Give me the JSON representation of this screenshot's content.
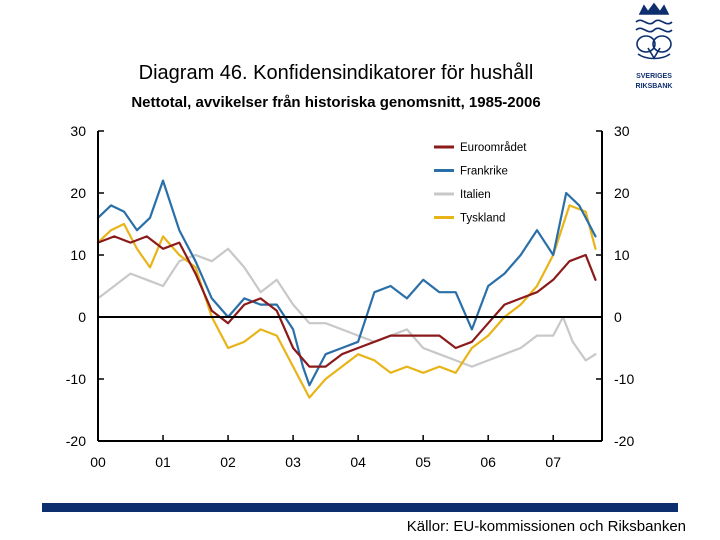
{
  "header": {
    "title": "Diagram 46. Konfidensindikatorer för hushåll",
    "subtitle": "Nettotal, avvikelser från historiska genomsnitt, 1985-2006"
  },
  "logo": {
    "line1": "SVERIGES",
    "line2": "RIKSBANK",
    "icon": "crown-emblem-icon"
  },
  "footer": {
    "source": "Källor: EU-kommissionen och Riksbanken"
  },
  "colors": {
    "euro": "#8b1a1a",
    "fr": "#2a6fa8",
    "it": "#c8c8c8",
    "de": "#e8b418",
    "axis": "#000000",
    "bar": "#0e2f6e"
  },
  "chart_data": {
    "type": "line",
    "title": "Diagram 46. Konfidensindikatorer för hushåll",
    "subtitle": "Nettotal, avvikelser från historiska genomsnitt, 1985-2006",
    "xlabel": "",
    "ylabel": "",
    "x_range": [
      2000.0,
      2007.75
    ],
    "ylim": [
      -20,
      30
    ],
    "y_ticks": [
      "30",
      "20",
      "10",
      "0",
      "-10",
      "-20"
    ],
    "y_tick_values": [
      30,
      20,
      10,
      0,
      -10,
      -20
    ],
    "x_ticks": [
      "00",
      "01",
      "02",
      "03",
      "04",
      "05",
      "06",
      "07"
    ],
    "x_tick_values": [
      2000,
      2001,
      2002,
      2003,
      2004,
      2005,
      2006,
      2007
    ],
    "legend": {
      "position": "top-right"
    },
    "series": [
      {
        "name": "Euroområdet",
        "color": "#8b1a1a",
        "x": [
          2000.0,
          2000.25,
          2000.5,
          2000.75,
          2001.0,
          2001.25,
          2001.5,
          2001.75,
          2002.0,
          2002.25,
          2002.5,
          2002.75,
          2003.0,
          2003.25,
          2003.5,
          2003.75,
          2004.0,
          2004.25,
          2004.5,
          2004.75,
          2005.0,
          2005.25,
          2005.5,
          2005.75,
          2006.0,
          2006.25,
          2006.5,
          2006.75,
          2007.0,
          2007.25,
          2007.5,
          2007.65
        ],
        "values": [
          12,
          13,
          12,
          13,
          11,
          12,
          7,
          1,
          -1,
          2,
          3,
          1,
          -5,
          -8,
          -8,
          -6,
          -5,
          -4,
          -3,
          -3,
          -3,
          -3,
          -5,
          -4,
          -1,
          2,
          3,
          4,
          6,
          9,
          10,
          6
        ]
      },
      {
        "name": "Frankrike",
        "color": "#2a6fa8",
        "x": [
          2000.0,
          2000.2,
          2000.4,
          2000.6,
          2000.8,
          2001.0,
          2001.25,
          2001.5,
          2001.75,
          2002.0,
          2002.25,
          2002.5,
          2002.75,
          2003.0,
          2003.15,
          2003.25,
          2003.5,
          2003.75,
          2004.0,
          2004.25,
          2004.5,
          2004.75,
          2005.0,
          2005.25,
          2005.5,
          2005.75,
          2006.0,
          2006.25,
          2006.5,
          2006.75,
          2007.0,
          2007.2,
          2007.4,
          2007.65
        ],
        "values": [
          16,
          18,
          17,
          14,
          16,
          22,
          14,
          9,
          3,
          0,
          3,
          2,
          2,
          -2,
          -8,
          -11,
          -6,
          -5,
          -4,
          4,
          5,
          3,
          6,
          4,
          4,
          -2,
          5,
          7,
          10,
          14,
          10,
          20,
          18,
          13
        ]
      },
      {
        "name": "Italien",
        "color": "#c8c8c8",
        "x": [
          2000.0,
          2000.25,
          2000.5,
          2000.75,
          2001.0,
          2001.25,
          2001.5,
          2001.75,
          2002.0,
          2002.25,
          2002.5,
          2002.75,
          2003.0,
          2003.25,
          2003.5,
          2003.75,
          2004.0,
          2004.25,
          2004.5,
          2004.75,
          2005.0,
          2005.25,
          2005.5,
          2005.75,
          2006.0,
          2006.25,
          2006.5,
          2006.75,
          2007.0,
          2007.15,
          2007.3,
          2007.5,
          2007.65
        ],
        "values": [
          3,
          5,
          7,
          6,
          5,
          9,
          10,
          9,
          11,
          8,
          4,
          6,
          2,
          -1,
          -1,
          -2,
          -3,
          -4,
          -3,
          -2,
          -5,
          -6,
          -7,
          -8,
          -7,
          -6,
          -5,
          -3,
          -3,
          0,
          -4,
          -7,
          -6
        ]
      },
      {
        "name": "Tyskland",
        "color": "#e8b418",
        "x": [
          2000.0,
          2000.2,
          2000.4,
          2000.6,
          2000.8,
          2001.0,
          2001.25,
          2001.5,
          2001.75,
          2002.0,
          2002.25,
          2002.5,
          2002.75,
          2003.0,
          2003.25,
          2003.5,
          2003.75,
          2004.0,
          2004.25,
          2004.5,
          2004.75,
          2005.0,
          2005.25,
          2005.5,
          2005.75,
          2006.0,
          2006.25,
          2006.5,
          2006.75,
          2007.0,
          2007.25,
          2007.5,
          2007.65
        ],
        "values": [
          12,
          14,
          15,
          11,
          8,
          13,
          10,
          8,
          0,
          -5,
          -4,
          -2,
          -3,
          -8,
          -13,
          -10,
          -8,
          -6,
          -7,
          -9,
          -8,
          -9,
          -8,
          -9,
          -5,
          -3,
          0,
          2,
          5,
          10,
          18,
          17,
          11
        ]
      }
    ]
  }
}
